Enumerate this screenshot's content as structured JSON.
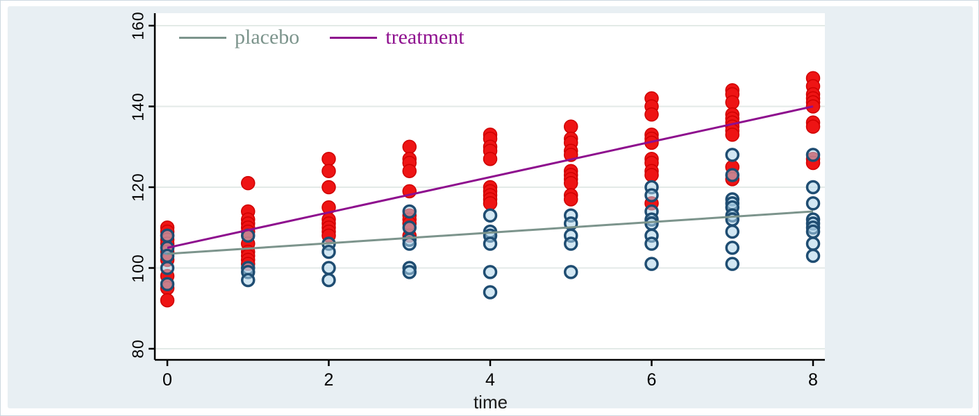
{
  "chart_data": {
    "type": "scatter",
    "title": "",
    "xlabel": "time",
    "ylabel": "",
    "x_ticks": [
      0,
      2,
      4,
      6,
      8
    ],
    "y_ticks": [
      80,
      100,
      120,
      140,
      160
    ],
    "xlim": [
      -0.15,
      8.15
    ],
    "ylim": [
      77,
      163
    ],
    "grid": "horizontal",
    "legend_position": "top-left-inside",
    "background_color": "#e8eff3",
    "plot_background_color": "#ffffff",
    "gridline_color": "#e3eae7",
    "axis_color": "#000000",
    "series": [
      {
        "name": "treatment",
        "marker": "filled-circle",
        "marker_fill": "#ee1414",
        "marker_stroke": "#cf0000",
        "line_color": "#8e0f8e",
        "fit_line": {
          "x": [
            0,
            8
          ],
          "y": [
            105,
            140
          ]
        },
        "points": [
          [
            0,
            110
          ],
          [
            0,
            109
          ],
          [
            0,
            108
          ],
          [
            0,
            107
          ],
          [
            0,
            106
          ],
          [
            0,
            105
          ],
          [
            0,
            104
          ],
          [
            0,
            102
          ],
          [
            0,
            98
          ],
          [
            0,
            95
          ],
          [
            0,
            92
          ],
          [
            1,
            121
          ],
          [
            1,
            114
          ],
          [
            1,
            112
          ],
          [
            1,
            111
          ],
          [
            1,
            110
          ],
          [
            1,
            109
          ],
          [
            1,
            106
          ],
          [
            1,
            104
          ],
          [
            1,
            103
          ],
          [
            1,
            102
          ],
          [
            1,
            101
          ],
          [
            2,
            127
          ],
          [
            2,
            124
          ],
          [
            2,
            120
          ],
          [
            2,
            115
          ],
          [
            2,
            112
          ],
          [
            2,
            111
          ],
          [
            2,
            110
          ],
          [
            2,
            109
          ],
          [
            2,
            108
          ],
          [
            3,
            130
          ],
          [
            3,
            127
          ],
          [
            3,
            126
          ],
          [
            3,
            124
          ],
          [
            3,
            119
          ],
          [
            3,
            113
          ],
          [
            3,
            112
          ],
          [
            3,
            111
          ],
          [
            3,
            108
          ],
          [
            4,
            133
          ],
          [
            4,
            132
          ],
          [
            4,
            130
          ],
          [
            4,
            129
          ],
          [
            4,
            127
          ],
          [
            4,
            120
          ],
          [
            4,
            119
          ],
          [
            4,
            118
          ],
          [
            4,
            117
          ],
          [
            4,
            116
          ],
          [
            5,
            135
          ],
          [
            5,
            132
          ],
          [
            5,
            131
          ],
          [
            5,
            129
          ],
          [
            5,
            128
          ],
          [
            5,
            124
          ],
          [
            5,
            123
          ],
          [
            5,
            122
          ],
          [
            5,
            121
          ],
          [
            5,
            118
          ],
          [
            5,
            117
          ],
          [
            6,
            142
          ],
          [
            6,
            140
          ],
          [
            6,
            138
          ],
          [
            6,
            133
          ],
          [
            6,
            132
          ],
          [
            6,
            131
          ],
          [
            6,
            127
          ],
          [
            6,
            126
          ],
          [
            6,
            124
          ],
          [
            6,
            123
          ],
          [
            6,
            116
          ],
          [
            7,
            144
          ],
          [
            7,
            143
          ],
          [
            7,
            141
          ],
          [
            7,
            138
          ],
          [
            7,
            137
          ],
          [
            7,
            136
          ],
          [
            7,
            135
          ],
          [
            7,
            134
          ],
          [
            7,
            133
          ],
          [
            7,
            125
          ],
          [
            7,
            122
          ],
          [
            8,
            147
          ],
          [
            8,
            145
          ],
          [
            8,
            143
          ],
          [
            8,
            142
          ],
          [
            8,
            141
          ],
          [
            8,
            140
          ],
          [
            8,
            136
          ],
          [
            8,
            135
          ],
          [
            8,
            127
          ],
          [
            8,
            126
          ]
        ]
      },
      {
        "name": "placebo",
        "marker": "hollow-circle",
        "marker_fill": "rgba(173,212,234,0.55)",
        "marker_stroke": "#1f4d72",
        "line_color": "#7c948c",
        "fit_line": {
          "x": [
            0,
            8
          ],
          "y": [
            103.5,
            114
          ]
        },
        "points": [
          [
            0,
            108
          ],
          [
            0,
            105
          ],
          [
            0,
            103
          ],
          [
            0,
            100
          ],
          [
            0,
            96
          ],
          [
            1,
            108
          ],
          [
            1,
            100
          ],
          [
            1,
            99
          ],
          [
            1,
            97
          ],
          [
            2,
            106
          ],
          [
            2,
            104
          ],
          [
            2,
            100
          ],
          [
            2,
            97
          ],
          [
            3,
            114
          ],
          [
            3,
            110
          ],
          [
            3,
            107
          ],
          [
            3,
            106
          ],
          [
            3,
            100
          ],
          [
            3,
            99
          ],
          [
            4,
            113
          ],
          [
            4,
            109
          ],
          [
            4,
            108
          ],
          [
            4,
            106
          ],
          [
            4,
            99
          ],
          [
            4,
            94
          ],
          [
            5,
            113
          ],
          [
            5,
            111
          ],
          [
            5,
            108
          ],
          [
            5,
            106
          ],
          [
            5,
            99
          ],
          [
            6,
            120
          ],
          [
            6,
            118
          ],
          [
            6,
            114
          ],
          [
            6,
            112
          ],
          [
            6,
            111
          ],
          [
            6,
            108
          ],
          [
            6,
            106
          ],
          [
            6,
            101
          ],
          [
            7,
            128
          ],
          [
            7,
            123
          ],
          [
            7,
            117
          ],
          [
            7,
            116
          ],
          [
            7,
            115
          ],
          [
            7,
            113
          ],
          [
            7,
            112
          ],
          [
            7,
            109
          ],
          [
            7,
            105
          ],
          [
            7,
            101
          ],
          [
            8,
            128
          ],
          [
            8,
            120
          ],
          [
            8,
            116
          ],
          [
            8,
            112
          ],
          [
            8,
            111
          ],
          [
            8,
            110
          ],
          [
            8,
            109
          ],
          [
            8,
            106
          ],
          [
            8,
            103
          ]
        ]
      }
    ],
    "legend": [
      {
        "label": "placebo",
        "color": "#7c948c"
      },
      {
        "label": "treatment",
        "color": "#8e0f8e"
      }
    ]
  }
}
